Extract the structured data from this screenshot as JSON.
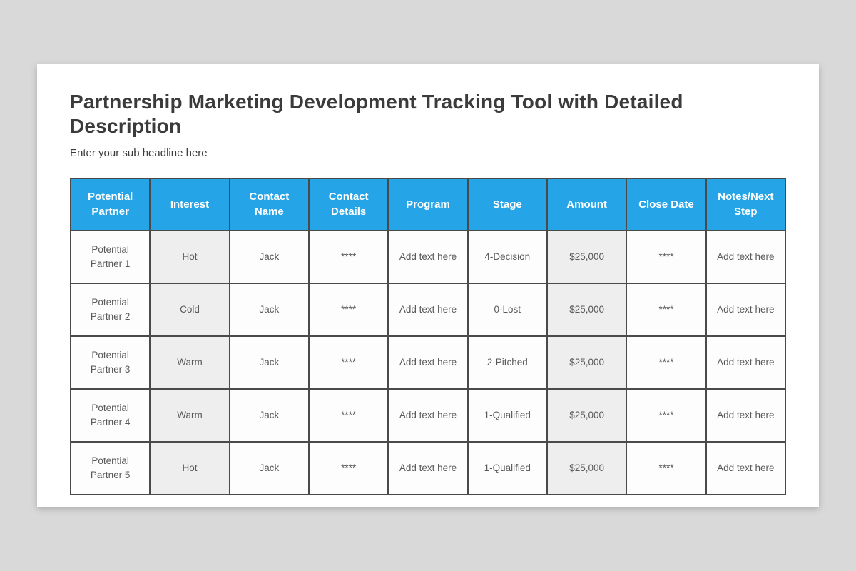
{
  "colors": {
    "page_background": "#d9d9d9",
    "card_background": "#ffffff",
    "table_header_background": "#25a5e7",
    "table_header_text": "#ffffff",
    "table_border": "#4a4a4a",
    "shaded_cell_background": "#eeeeee",
    "cell_background": "#fdfdfd",
    "body_text": "#595959",
    "title_text": "#3b3b3b"
  },
  "slide": {
    "title": "Partnership Marketing Development Tracking Tool with Detailed Description",
    "subtitle": "Enter your sub headline here"
  },
  "table": {
    "columns": [
      "Potential Partner",
      "Interest",
      "Contact Name",
      "Contact Details",
      "Program",
      "Stage",
      "Amount",
      "Close Date",
      "Notes/Next Step"
    ],
    "shaded_column_indexes": [
      1,
      6
    ],
    "rows": [
      [
        "Potential Partner 1",
        "Hot",
        "Jack",
        "****",
        "Add text here",
        "4-Decision",
        "$25,000",
        "****",
        "Add text here"
      ],
      [
        "Potential Partner 2",
        "Cold",
        "Jack",
        "****",
        "Add text here",
        "0-Lost",
        "$25,000",
        "****",
        "Add text here"
      ],
      [
        "Potential Partner 3",
        "Warm",
        "Jack",
        "****",
        "Add text here",
        "2-Pitched",
        "$25,000",
        "****",
        "Add text here"
      ],
      [
        "Potential Partner 4",
        "Warm",
        "Jack",
        "****",
        "Add text here",
        "1-Qualified",
        "$25,000",
        "****",
        "Add text here"
      ],
      [
        "Potential Partner 5",
        "Hot",
        "Jack",
        "****",
        "Add text here",
        "1-Qualified",
        "$25,000",
        "****",
        "Add text here"
      ]
    ]
  }
}
